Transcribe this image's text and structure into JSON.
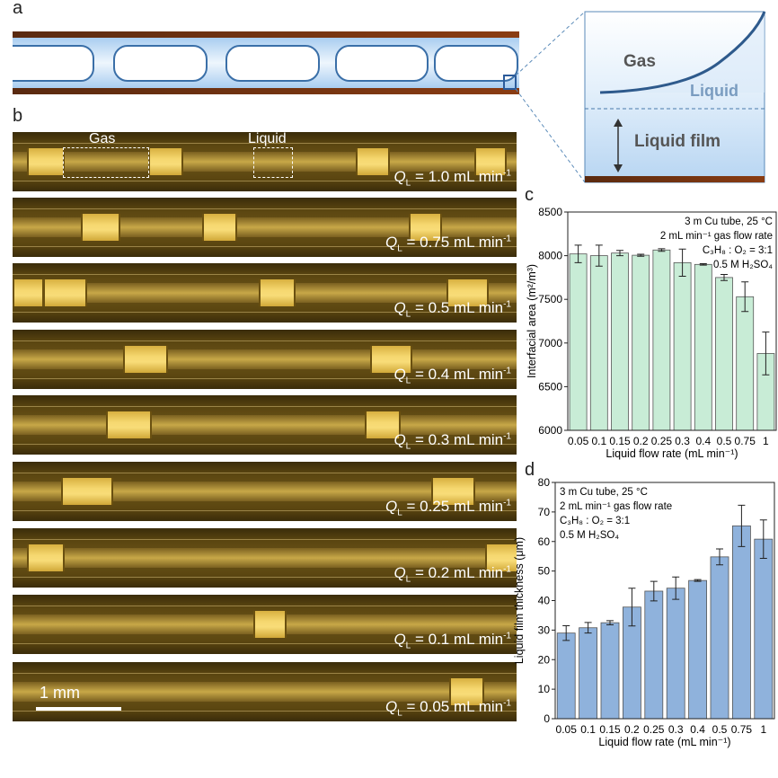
{
  "panel_labels": {
    "a": "a",
    "b": "b",
    "c": "c",
    "d": "d"
  },
  "schematic": {
    "gas": "Gas",
    "liquid": "Liquid",
    "liquid_film": "Liquid film"
  },
  "micrographs": {
    "gas_box_label": "Gas",
    "liquid_box_label": "Liquid",
    "scale_bar": "1 mm",
    "flow_prefix": "Q",
    "flow_sub": "L",
    "flow_unit": "mL min",
    "flow_unit_exp": "-1",
    "rates": [
      "1.0",
      "0.75",
      "0.5",
      "0.4",
      "0.3",
      "0.25",
      "0.2",
      "0.1",
      "0.05"
    ]
  },
  "chart_data": [
    {
      "type": "bar",
      "title": "",
      "categories": [
        "0.05",
        "0.1",
        "0.15",
        "0.2",
        "0.25",
        "0.3",
        "0.4",
        "0.5",
        "0.75",
        "1"
      ],
      "values": [
        8020,
        8000,
        8030,
        8005,
        8065,
        7920,
        7900,
        7750,
        7530,
        6880
      ],
      "errors": [
        100,
        120,
        30,
        12,
        15,
        155,
        8,
        35,
        170,
        245
      ],
      "xlabel": "Liquid flow rate (mL min⁻¹)",
      "ylabel": "Interfacial area (m²/m³)",
      "ylim": [
        6000,
        8500
      ],
      "yticks": [
        "6000",
        "6500",
        "7000",
        "7500",
        "8000",
        "8500"
      ],
      "color": "#c8ecd6",
      "annotations": [
        "3 m Cu tube, 25 °C",
        "2 mL min⁻¹ gas flow rate",
        "C₃H₈ : O₂ = 3:1",
        "0.5 M H₂SO₄"
      ]
    },
    {
      "type": "bar",
      "title": "",
      "categories": [
        "0.05",
        "0.1",
        "0.15",
        "0.2",
        "0.25",
        "0.3",
        "0.4",
        "0.5",
        "0.75",
        "1"
      ],
      "values": [
        29.0,
        30.8,
        32.5,
        37.8,
        43.2,
        44.2,
        46.8,
        54.8,
        65.3,
        60.8
      ],
      "errors": [
        2.5,
        1.8,
        0.7,
        6.4,
        3.3,
        3.8,
        0.3,
        2.7,
        7.0,
        6.5
      ],
      "xlabel": "Liquid flow rate (mL min⁻¹)",
      "ylabel": "Liquid film thickness (μm)",
      "ylim": [
        0,
        80
      ],
      "yticks": [
        "0",
        "10",
        "20",
        "30",
        "40",
        "50",
        "60",
        "70",
        "80"
      ],
      "color": "#8fb2dc",
      "annotations": [
        "3 m Cu tube, 25 °C",
        "2 mL min⁻¹ gas flow rate",
        "C₃H₈ : O₂ = 3:1",
        "0.5 M H₂SO₄"
      ]
    }
  ]
}
